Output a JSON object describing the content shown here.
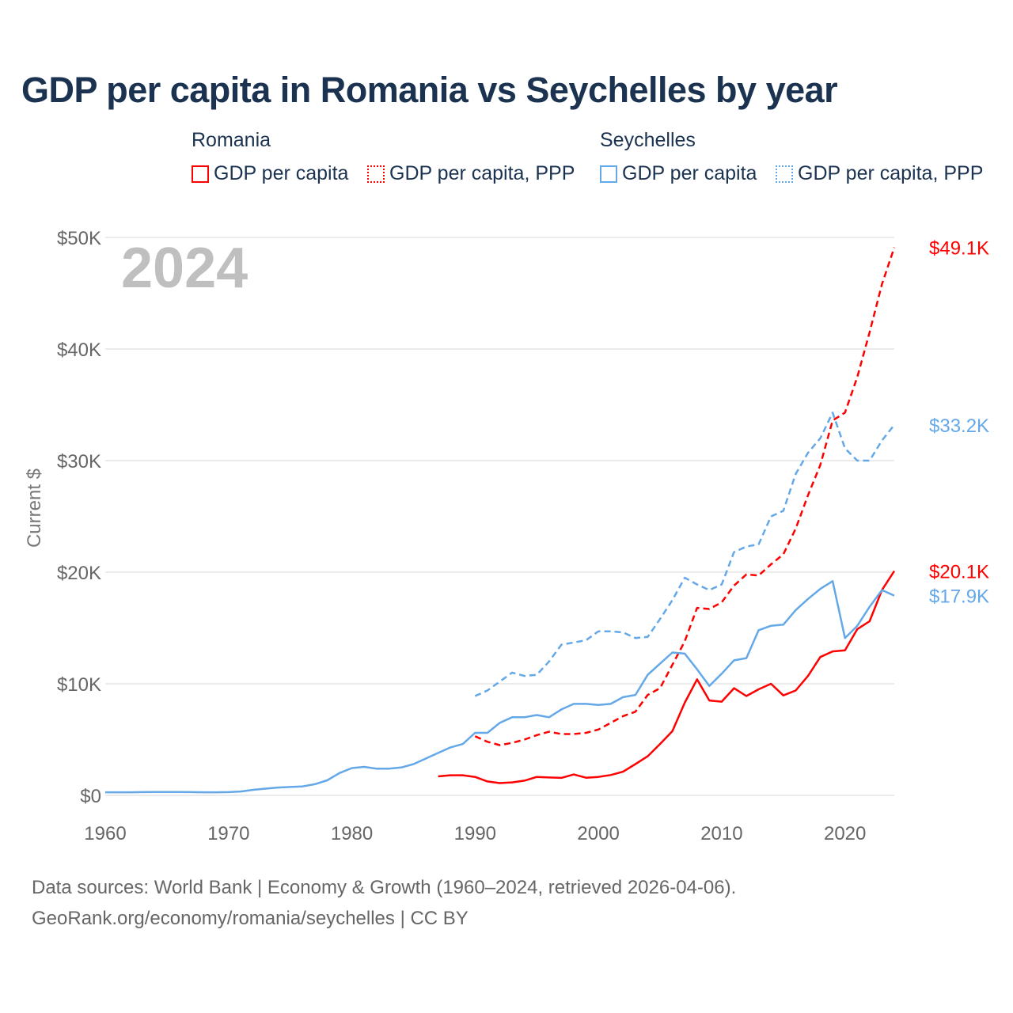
{
  "title": "GDP per capita in Romania vs Seychelles by year",
  "legend": {
    "groups": [
      {
        "name": "Romania",
        "items": [
          "GDP per capita",
          "GDP per capita, PPP"
        ]
      },
      {
        "name": "Seychelles",
        "items": [
          "GDP per capita",
          "GDP per capita, PPP"
        ]
      }
    ]
  },
  "colors": {
    "romania": "#ff0000",
    "seychelles": "#64a8e8",
    "year": "#bfbfbf"
  },
  "footer": {
    "line1": "Data sources: World Bank | Economy & Growth (1960–2024, retrieved 2026-04-06).",
    "line2": "GeoRank.org/economy/romania/seychelles | CC BY"
  },
  "chart_data": {
    "type": "line",
    "title": "GDP per capita in Romania vs Seychelles by year",
    "year_label": "2024",
    "ylabel": "Current $",
    "xlim": [
      1960,
      2024
    ],
    "ylim": [
      0,
      50
    ],
    "x_ticks": [
      "1960",
      "1970",
      "1980",
      "1990",
      "2000",
      "2010",
      "2020"
    ],
    "y_ticks": [
      "$0",
      "$10K",
      "$20K",
      "$30K",
      "$40K",
      "$50K"
    ],
    "series": [
      {
        "name": "Romania GDP per capita",
        "country": "romania",
        "dashed": false,
        "start": 1987,
        "end_label": "$20.1K",
        "values": [
          1.7,
          1.8,
          1.8,
          1.65,
          1.25,
          1.1,
          1.16,
          1.32,
          1.65,
          1.6,
          1.57,
          1.87,
          1.58,
          1.65,
          1.82,
          2.12,
          2.8,
          3.5,
          4.6,
          5.75,
          8.3,
          10.4,
          8.5,
          8.4,
          9.6,
          8.9,
          9.5,
          10.0,
          8.96,
          9.4,
          10.7,
          12.4,
          12.9,
          13.0,
          14.9,
          15.6,
          18.4,
          20.1
        ]
      },
      {
        "name": "Romania GDP per capita, PPP",
        "country": "romania",
        "dashed": true,
        "start": 1990,
        "end_label": "$49.1K",
        "values": [
          5.3,
          4.8,
          4.5,
          4.7,
          5.0,
          5.4,
          5.7,
          5.5,
          5.5,
          5.6,
          5.9,
          6.5,
          7.1,
          7.5,
          9.0,
          9.6,
          11.7,
          13.8,
          16.8,
          16.7,
          17.3,
          18.8,
          19.8,
          19.7,
          20.7,
          21.6,
          23.9,
          26.9,
          29.6,
          33.6,
          34.3,
          37.5,
          41.5,
          45.8,
          49.1
        ]
      },
      {
        "name": "Seychelles GDP per capita",
        "country": "seychelles",
        "dashed": false,
        "start": 1960,
        "end_label": "$17.9K",
        "values": [
          0.28,
          0.28,
          0.28,
          0.29,
          0.3,
          0.3,
          0.3,
          0.29,
          0.28,
          0.28,
          0.29,
          0.35,
          0.5,
          0.6,
          0.7,
          0.75,
          0.8,
          1.0,
          1.35,
          2.0,
          2.45,
          2.55,
          2.4,
          2.4,
          2.5,
          2.8,
          3.3,
          3.8,
          4.3,
          4.6,
          5.6,
          5.6,
          6.5,
          7.0,
          7.0,
          7.2,
          7.0,
          7.7,
          8.2,
          8.2,
          8.1,
          8.2,
          8.8,
          9.0,
          10.8,
          11.8,
          12.8,
          12.7,
          11.3,
          9.8,
          10.9,
          12.1,
          12.3,
          14.8,
          15.2,
          15.3,
          16.6,
          17.6,
          18.5,
          19.2,
          14.1,
          15.2,
          16.9,
          18.4,
          17.9
        ]
      },
      {
        "name": "Seychelles GDP per capita, PPP",
        "country": "seychelles",
        "dashed": true,
        "start": 1990,
        "end_label": "$33.2K",
        "values": [
          8.9,
          9.4,
          10.2,
          11.0,
          10.7,
          10.8,
          12.0,
          13.5,
          13.7,
          13.9,
          14.7,
          14.7,
          14.6,
          14.1,
          14.2,
          15.8,
          17.5,
          19.5,
          18.9,
          18.4,
          18.9,
          21.8,
          22.3,
          22.5,
          25.0,
          25.5,
          28.8,
          30.7,
          32.0,
          34.3,
          31.1,
          30.0,
          30.0,
          31.8,
          33.2
        ]
      }
    ]
  }
}
